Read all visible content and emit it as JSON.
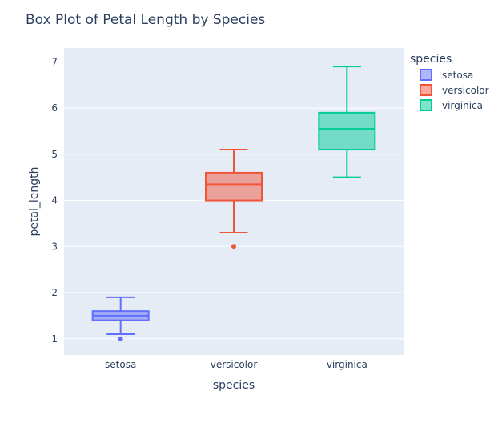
{
  "chart_data": {
    "type": "box",
    "title": "Box Plot of Petal Length by Species",
    "xlabel": "species",
    "ylabel": "petal_length",
    "categories": [
      "setosa",
      "versicolor",
      "virginica"
    ],
    "ylim": [
      0.65,
      7.3
    ],
    "yticks": [
      1,
      2,
      3,
      4,
      5,
      6,
      7
    ],
    "grid": true,
    "legend": {
      "title": "species",
      "placement": "top-right",
      "entries": [
        "setosa",
        "versicolor",
        "virginica"
      ]
    },
    "series": [
      {
        "name": "setosa",
        "color": "#636efa",
        "fill": "rgba(99,110,250,0.5)",
        "min": 1.1,
        "q1": 1.4,
        "median": 1.5,
        "q3": 1.6,
        "max": 1.9,
        "outliers": [
          1.0
        ]
      },
      {
        "name": "versicolor",
        "color": "#ef553b",
        "fill": "rgba(239,85,59,0.5)",
        "min": 3.3,
        "q1": 4.0,
        "median": 4.35,
        "q3": 4.6,
        "max": 5.1,
        "outliers": [
          3.0
        ]
      },
      {
        "name": "virginica",
        "color": "#00cc96",
        "fill": "rgba(0,204,150,0.5)",
        "min": 4.5,
        "q1": 5.1,
        "median": 5.55,
        "q3": 5.9,
        "max": 6.9,
        "outliers": []
      }
    ]
  },
  "colors": {
    "plot_background": "#e5ecf6",
    "gridline": "#ffffff",
    "text": "#2a3f5f"
  }
}
